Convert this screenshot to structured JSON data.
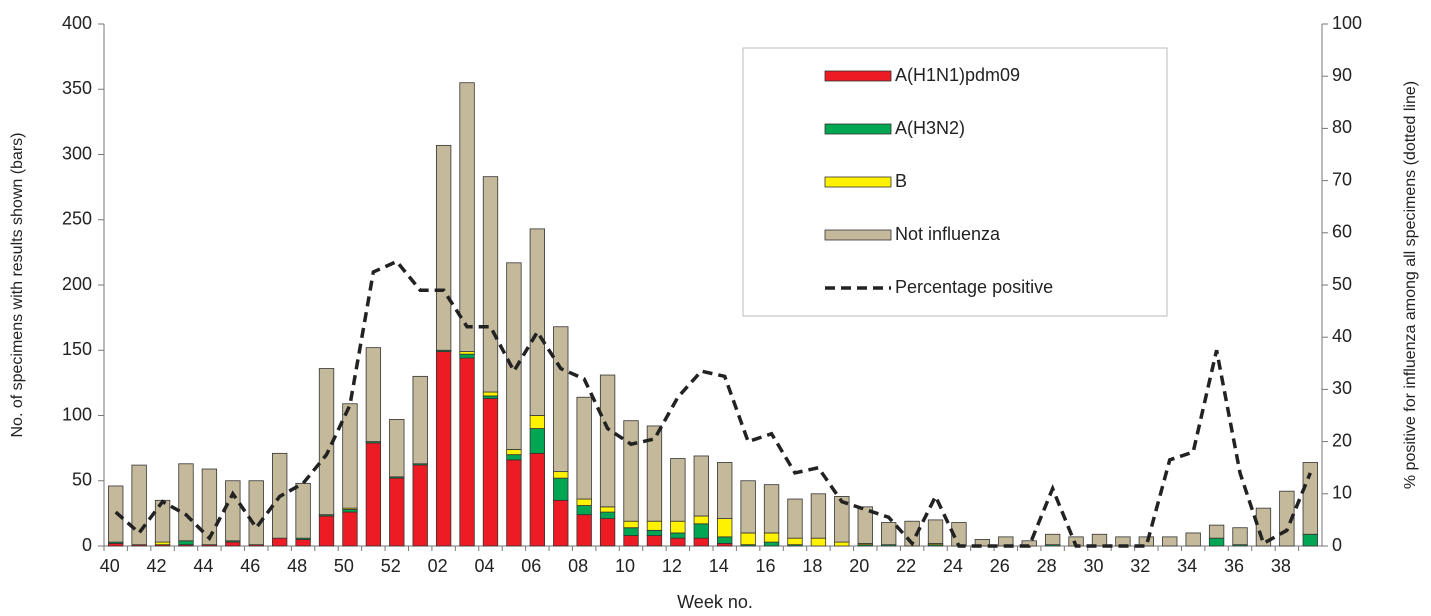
{
  "chart_data": {
    "type": "stacked-bar-line",
    "x_label": "Week no.",
    "y_label": "No. of specimens with results shown (bars)",
    "y2_label": "% positive for influenza among all specimens (dotted line)",
    "categories": [
      "40",
      null,
      "42",
      null,
      "44",
      null,
      "46",
      null,
      "48",
      null,
      "50",
      null,
      "52",
      null,
      "02",
      null,
      "04",
      null,
      "06",
      null,
      "08",
      null,
      "10",
      null,
      "12",
      null,
      "14",
      null,
      "16",
      null,
      "18",
      null,
      "20",
      null,
      "22",
      null,
      "24",
      null,
      "26",
      null,
      "28",
      null,
      "30",
      null,
      "32",
      null,
      "34",
      null,
      "36",
      null,
      "38",
      null
    ],
    "ylim": [
      0,
      400
    ],
    "yticks": [
      0,
      50,
      100,
      150,
      200,
      250,
      300,
      350,
      400
    ],
    "y2lim": [
      0,
      100
    ],
    "y2ticks": [
      0,
      10,
      20,
      30,
      40,
      50,
      60,
      70,
      80,
      90,
      100
    ],
    "legend": "upper right",
    "series": [
      {
        "name": "A(H1N1)pdm09",
        "color": "#ed1c24",
        "values": [
          2,
          1,
          1,
          1,
          1,
          3,
          1,
          6,
          5,
          23,
          26,
          79,
          52,
          62,
          149,
          144,
          113,
          66,
          71,
          35,
          24,
          21,
          8,
          8,
          6,
          6,
          2,
          0,
          0,
          0,
          0,
          0,
          0,
          0,
          0,
          0,
          0,
          0,
          0,
          0,
          0,
          0,
          0,
          0,
          0,
          0,
          0,
          0,
          0,
          0,
          0,
          0
        ]
      },
      {
        "name": "A(H3N2)",
        "color": "#00a651",
        "values": [
          1,
          0,
          0,
          3,
          0,
          1,
          0,
          0,
          1,
          1,
          2,
          1,
          1,
          1,
          1,
          3,
          2,
          4,
          19,
          17,
          7,
          5,
          6,
          4,
          4,
          11,
          5,
          1,
          3,
          1,
          0,
          0,
          1,
          1,
          0,
          1,
          0,
          0,
          0,
          0,
          1,
          0,
          0,
          0,
          0,
          0,
          0,
          6,
          1,
          0,
          0,
          9
        ]
      },
      {
        "name": "B",
        "color": "#fff200",
        "values": [
          0,
          0,
          2,
          0,
          0,
          0,
          0,
          0,
          0,
          0,
          1,
          0,
          0,
          0,
          0,
          2,
          3,
          4,
          10,
          5,
          5,
          4,
          5,
          7,
          9,
          6,
          14,
          9,
          7,
          5,
          6,
          3,
          1,
          0,
          0,
          1,
          0,
          0,
          0,
          0,
          0,
          0,
          0,
          0,
          0,
          0,
          0,
          0,
          0,
          0,
          0,
          0
        ]
      },
      {
        "name": "Not influenza",
        "color": "#c4b99a",
        "values": [
          43,
          61,
          32,
          59,
          58,
          46,
          49,
          65,
          42,
          112,
          80,
          72,
          44,
          67,
          157,
          206,
          165,
          143,
          143,
          111,
          78,
          101,
          77,
          73,
          48,
          46,
          43,
          40,
          37,
          30,
          34,
          35,
          28,
          17,
          19,
          18,
          18,
          5,
          7,
          4,
          8,
          7,
          9,
          7,
          7,
          7,
          10,
          10,
          13,
          29,
          42,
          55
        ]
      },
      {
        "name": "Percentage positive",
        "color": "#222222",
        "axis": "y2",
        "values": [
          6.5,
          2.5,
          8.5,
          6,
          1.5,
          10,
          3.5,
          9.5,
          12,
          17.5,
          27,
          52.5,
          54.5,
          49,
          49,
          42,
          42,
          33.5,
          41,
          34,
          32,
          22.5,
          19.5,
          20.5,
          28.5,
          33.5,
          32.5,
          20,
          21.5,
          14,
          15,
          8.5,
          7,
          5.5,
          0.5,
          9.5,
          0,
          0,
          0,
          0,
          11,
          0,
          0,
          0,
          0,
          16.5,
          18,
          37.5,
          14,
          0.5,
          3,
          14
        ]
      }
    ]
  }
}
